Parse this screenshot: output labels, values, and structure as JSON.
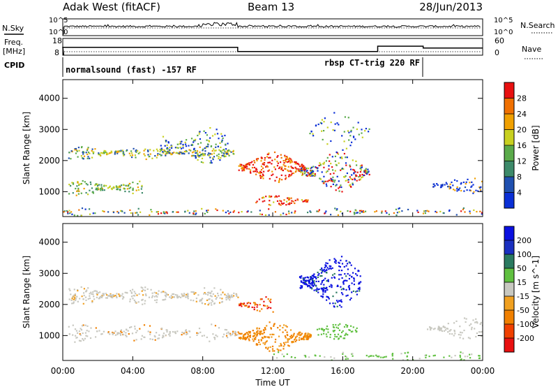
{
  "header": {
    "station": "Adak West (fitACF)",
    "beam": "Beam 13",
    "date": "28/Jun/2013"
  },
  "status_panels": {
    "nsky_label": "N.Sky",
    "nsky_ticks": [
      "10^5",
      "10^0"
    ],
    "nsearch_label": "N.Search",
    "nsearch_ticks": [
      "10^5",
      "10^0"
    ],
    "freq_label": "Freq.",
    "freq_unit": "[MHz]",
    "freq_ticks": [
      "18",
      "8"
    ],
    "nave_label": "Nave",
    "nave_ticks": [
      "60",
      "0"
    ],
    "cpid_label": "CPID",
    "cpid_segments": [
      {
        "label": "normalsound (fast) -157 RF",
        "start_hr": 0,
        "end_hr": 20.6
      },
      {
        "label": "rbsp CT-trig 220 RF",
        "start_hr": 10,
        "end_hr": 20.6
      }
    ],
    "freq_levels_mhz": [
      {
        "start_hr": 0,
        "end_hr": 10,
        "value": 14
      },
      {
        "start_hr": 10,
        "end_hr": 18,
        "value": 10.5
      },
      {
        "start_hr": 18,
        "end_hr": 20.6,
        "value": 15
      },
      {
        "start_hr": 20.6,
        "end_hr": 24,
        "value": 13.5
      }
    ]
  },
  "chart_data": [
    {
      "type": "heatmap",
      "ylabel": "Slant Range [km]",
      "xlabel": "Time UT",
      "x_ticks": [
        "00:00",
        "04:00",
        "08:00",
        "12:00",
        "16:00",
        "20:00",
        "00:00"
      ],
      "x_tick_hours": [
        0,
        4,
        8,
        12,
        16,
        20,
        24
      ],
      "y_ticks": [
        1000,
        2000,
        3000,
        4000
      ],
      "ylim": [
        200,
        4600
      ],
      "xlim_hours": [
        0,
        24
      ],
      "colorbar": {
        "label": "Power [dB]",
        "tick_labels": [
          "4",
          "8",
          "12",
          "16",
          "20",
          "24",
          "28"
        ],
        "colors": [
          "#0a2fd6",
          "#2050b0",
          "#3d8a6a",
          "#5aaa4a",
          "#c8d020",
          "#f0a000",
          "#f07000",
          "#e81010"
        ]
      },
      "features": [
        {
          "hours": [
            0.3,
            10.0
          ],
          "range_km": [
            2050,
            2500
          ],
          "level": "green"
        },
        {
          "hours": [
            0.3,
            5.0
          ],
          "range_km": [
            900,
            1400
          ],
          "level": "green-yellow"
        },
        {
          "hours": [
            10.0,
            13.8
          ],
          "range_km": [
            1300,
            2300
          ],
          "level": "red"
        },
        {
          "hours": [
            11.0,
            14.0
          ],
          "range_km": [
            550,
            900
          ],
          "level": "red-orange"
        },
        {
          "hours": [
            14.5,
            17.0
          ],
          "range_km": [
            1100,
            2200
          ],
          "level": "red-orange"
        },
        {
          "hours": [
            21.0,
            24.0
          ],
          "range_km": [
            950,
            1500
          ],
          "level": "blue"
        }
      ]
    },
    {
      "type": "heatmap",
      "ylabel": "Slant Range [km]",
      "xlabel": "Time UT",
      "x_ticks": [
        "00:00",
        "04:00",
        "08:00",
        "12:00",
        "16:00",
        "20:00",
        "00:00"
      ],
      "x_tick_hours": [
        0,
        4,
        8,
        12,
        16,
        20,
        24
      ],
      "y_ticks": [
        1000,
        2000,
        3000,
        4000
      ],
      "ylim": [
        200,
        4600
      ],
      "xlim_hours": [
        0,
        24
      ],
      "colorbar": {
        "label": "Velocity [m s^-1]",
        "tick_labels": [
          "-200",
          "-100",
          "-50",
          "-15",
          "15",
          "50",
          "100",
          "200"
        ],
        "colors": [
          "#e81010",
          "#f04000",
          "#f08000",
          "#f0a020",
          "#c8c8c0",
          "#60c040",
          "#2a7a60",
          "#1a30c0",
          "#0a10e0"
        ]
      },
      "features": [
        {
          "hours": [
            0.3,
            10.0
          ],
          "range_km": [
            2000,
            2500
          ],
          "level": "grey"
        },
        {
          "hours": [
            10.0,
            14.0
          ],
          "range_km": [
            500,
            1500
          ],
          "level": "orange"
        },
        {
          "hours": [
            13.5,
            17.0
          ],
          "range_km": [
            2000,
            3500
          ],
          "level": "blue"
        },
        {
          "hours": [
            14.5,
            16.5
          ],
          "range_km": [
            900,
            1400
          ],
          "level": "green"
        }
      ]
    }
  ]
}
